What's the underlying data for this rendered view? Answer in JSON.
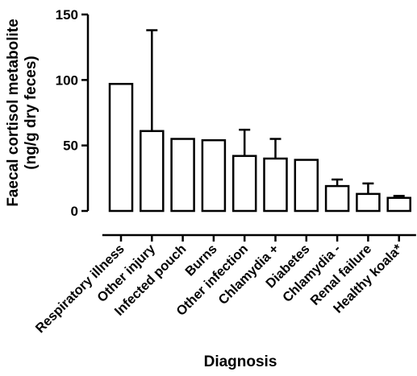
{
  "chart_data": {
    "type": "bar",
    "ylabel_lines": [
      "Faecal cortisol metabolite",
      "(ng/g dry feces)"
    ],
    "xlabel": "Diagnosis",
    "categories": [
      "Respiratory illness",
      "Other injury",
      "Infected pouch",
      "Burns",
      "Other infection",
      "Chlamydia +",
      "Diabetes",
      "Chlamydia -",
      "Renal failure",
      "Healthy koala*"
    ],
    "values": [
      97,
      61,
      55,
      54,
      42,
      40,
      39,
      19,
      13,
      10
    ],
    "error_upper": [
      null,
      138,
      null,
      null,
      62,
      55,
      null,
      24,
      21,
      11.5
    ],
    "yticks": [
      0,
      50,
      100,
      150
    ],
    "ylim": [
      0,
      150
    ],
    "grid": false,
    "bar_fill": "#ffffff",
    "bar_stroke": "#000000"
  }
}
